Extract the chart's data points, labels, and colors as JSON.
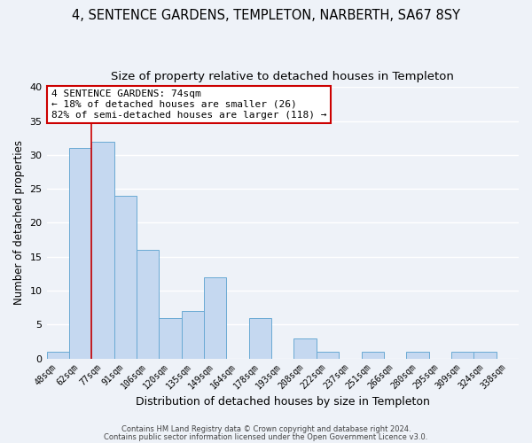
{
  "title1": "4, SENTENCE GARDENS, TEMPLETON, NARBERTH, SA67 8SY",
  "title2": "Size of property relative to detached houses in Templeton",
  "xlabel": "Distribution of detached houses by size in Templeton",
  "ylabel": "Number of detached properties",
  "bin_labels": [
    "48sqm",
    "62sqm",
    "77sqm",
    "91sqm",
    "106sqm",
    "120sqm",
    "135sqm",
    "149sqm",
    "164sqm",
    "178sqm",
    "193sqm",
    "208sqm",
    "222sqm",
    "237sqm",
    "251sqm",
    "266sqm",
    "280sqm",
    "295sqm",
    "309sqm",
    "324sqm",
    "338sqm"
  ],
  "bar_heights": [
    1,
    31,
    32,
    24,
    16,
    6,
    7,
    12,
    0,
    6,
    0,
    3,
    1,
    0,
    1,
    0,
    1,
    0,
    1,
    1,
    0
  ],
  "bar_color": "#c5d8f0",
  "bar_edge_color": "#6aaad4",
  "red_line_index": 2,
  "annotation_line1": "4 SENTENCE GARDENS: 74sqm",
  "annotation_line2": "← 18% of detached houses are smaller (26)",
  "annotation_line3": "82% of semi-detached houses are larger (118) →",
  "annotation_box_facecolor": "#ffffff",
  "annotation_box_edgecolor": "#cc0000",
  "ylim": [
    0,
    40
  ],
  "yticks": [
    0,
    5,
    10,
    15,
    20,
    25,
    30,
    35,
    40
  ],
  "footer1": "Contains HM Land Registry data © Crown copyright and database right 2024.",
  "footer2": "Contains public sector information licensed under the Open Government Licence v3.0.",
  "background_color": "#eef2f8",
  "grid_color": "#ffffff",
  "title1_fontsize": 10.5,
  "title2_fontsize": 9.5,
  "xlabel_fontsize": 9,
  "ylabel_fontsize": 8.5,
  "annotation_fontsize": 8,
  "tick_fontsize": 7,
  "ytick_fontsize": 8,
  "footer_fontsize": 6
}
